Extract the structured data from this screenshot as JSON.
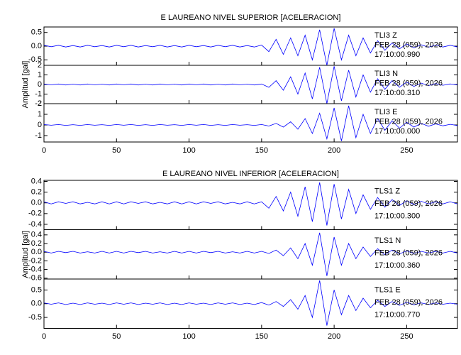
{
  "chart_data": [
    {
      "type": "line",
      "title": "E LAUREANO NIVEL SUPERIOR [ACELERACION]",
      "y_label": "Amplitud [gal]",
      "xlim": [
        0,
        285
      ],
      "xticks": [
        0,
        50,
        100,
        150,
        200,
        250
      ],
      "x": [
        0,
        5,
        10,
        15,
        20,
        25,
        30,
        35,
        40,
        45,
        50,
        55,
        60,
        65,
        70,
        75,
        80,
        85,
        90,
        95,
        100,
        105,
        110,
        115,
        120,
        125,
        130,
        135,
        140,
        145,
        150,
        155,
        160,
        165,
        170,
        175,
        180,
        185,
        190,
        195,
        200,
        205,
        210,
        215,
        220,
        225,
        230,
        235,
        240,
        245,
        250,
        255,
        260,
        265,
        270,
        275,
        280,
        285
      ],
      "panels": [
        {
          "station": "TLI3   Z",
          "date": "FEB 28 (059), 2026",
          "time": "17:10:00.990",
          "color": "#0000ff",
          "ylim": [
            -0.7,
            0.7
          ],
          "yticks": [
            -0.5,
            {
              "value": 0,
              "label": "0.0"
            },
            0.5
          ],
          "values": [
            0.03,
            -0.02,
            0.03,
            -0.03,
            0.02,
            -0.03,
            0.03,
            -0.02,
            0.02,
            -0.03,
            0.03,
            -0.02,
            0.03,
            -0.03,
            0.02,
            -0.02,
            0.03,
            -0.03,
            0.02,
            -0.03,
            0.03,
            -0.02,
            0.02,
            -0.03,
            0.03,
            -0.02,
            0.03,
            -0.03,
            0.02,
            -0.03,
            0.04,
            -0.2,
            0.25,
            -0.3,
            0.3,
            -0.35,
            0.4,
            -0.5,
            0.6,
            -0.7,
            0.65,
            -0.5,
            0.4,
            -0.35,
            0.3,
            -0.25,
            0.2,
            -0.15,
            0.12,
            -0.1,
            0.08,
            -0.06,
            0.05,
            -0.04,
            0.04,
            -0.03,
            0.03,
            -0.03
          ]
        },
        {
          "station": "TLI3   N",
          "date": "FEB 28 (059), 2026",
          "time": "17:10:00.310",
          "color": "#0000ff",
          "ylim": [
            -2,
            2
          ],
          "yticks": [
            -2,
            -1,
            0,
            1,
            2
          ],
          "values": [
            0.05,
            -0.04,
            0.05,
            -0.05,
            0.04,
            -0.05,
            0.05,
            -0.04,
            0.04,
            -0.05,
            0.05,
            -0.04,
            0.05,
            -0.05,
            0.04,
            -0.05,
            0.05,
            -0.04,
            0.04,
            -0.05,
            0.05,
            -0.04,
            0.05,
            -0.05,
            0.04,
            -0.05,
            0.05,
            -0.04,
            0.04,
            -0.05,
            0.05,
            -0.3,
            0.4,
            -0.6,
            0.8,
            -1.0,
            1.2,
            -1.5,
            1.8,
            -2.0,
            1.9,
            -1.7,
            1.5,
            -1.3,
            1.0,
            -0.8,
            0.6,
            -0.5,
            0.4,
            -0.3,
            0.25,
            -0.2,
            0.15,
            -0.12,
            0.1,
            -0.08,
            0.06,
            -0.05
          ]
        },
        {
          "station": "TLI3   E",
          "date": "FEB 28 (059), 2026",
          "time": "17:10:00.000",
          "color": "#0000ff",
          "ylim": [
            -1.6,
            2
          ],
          "yticks": [
            -1,
            0,
            1,
            2
          ],
          "values": [
            0.04,
            -0.03,
            0.04,
            -0.04,
            0.03,
            -0.04,
            0.04,
            -0.03,
            0.03,
            -0.04,
            0.04,
            -0.03,
            0.04,
            -0.04,
            0.03,
            -0.04,
            0.04,
            -0.03,
            0.03,
            -0.04,
            0.04,
            -0.03,
            0.04,
            -0.04,
            0.03,
            -0.04,
            0.04,
            -0.03,
            0.03,
            -0.04,
            0.04,
            -0.1,
            0.15,
            -0.2,
            0.3,
            -0.4,
            0.6,
            -0.8,
            1.1,
            -1.3,
            1.6,
            -1.5,
            1.8,
            -1.2,
            1.0,
            -0.8,
            0.6,
            -0.5,
            0.4,
            -0.3,
            0.25,
            -0.2,
            0.15,
            -0.12,
            0.1,
            -0.08,
            0.06,
            -0.05
          ]
        }
      ]
    },
    {
      "type": "line",
      "title": "E LAUREANO NIVEL INFERIOR [ACELERACION]",
      "y_label": "Amplitud [gal]",
      "xlim": [
        0,
        285
      ],
      "xticks": [
        0,
        50,
        100,
        150,
        200,
        250
      ],
      "x": [
        0,
        5,
        10,
        15,
        20,
        25,
        30,
        35,
        40,
        45,
        50,
        55,
        60,
        65,
        70,
        75,
        80,
        85,
        90,
        95,
        100,
        105,
        110,
        115,
        120,
        125,
        130,
        135,
        140,
        145,
        150,
        155,
        160,
        165,
        170,
        175,
        180,
        185,
        190,
        195,
        200,
        205,
        210,
        215,
        220,
        225,
        230,
        235,
        240,
        245,
        250,
        255,
        260,
        265,
        270,
        275,
        280,
        285
      ],
      "panels": [
        {
          "station": "TLS1   Z",
          "date": "FEB 28 (059), 2026",
          "time": "17:10:00.300",
          "color": "#0000ff",
          "ylim": [
            -0.5,
            0.42
          ],
          "yticks": [
            -0.4,
            -0.2,
            {
              "value": 0,
              "label": "0.0"
            },
            0.2,
            0.4
          ],
          "values": [
            0.02,
            -0.02,
            0.02,
            -0.01,
            0.02,
            -0.02,
            0.01,
            -0.02,
            0.02,
            -0.02,
            0.02,
            -0.02,
            0.02,
            -0.01,
            0.02,
            -0.02,
            0.01,
            -0.02,
            0.02,
            -0.02,
            0.02,
            -0.02,
            0.02,
            -0.01,
            0.02,
            -0.02,
            0.01,
            -0.02,
            0.02,
            -0.02,
            0.02,
            -0.1,
            0.12,
            -0.15,
            0.2,
            -0.25,
            0.3,
            -0.35,
            0.38,
            -0.42,
            0.35,
            -0.3,
            0.25,
            -0.2,
            0.15,
            -0.12,
            0.1,
            -0.08,
            0.06,
            -0.05,
            0.04,
            -0.03,
            0.03,
            -0.02,
            0.02,
            -0.02,
            0.02,
            -0.02
          ]
        },
        {
          "station": "TLS1   N",
          "date": "FEB 28 (059), 2026",
          "time": "17:10:00.360",
          "color": "#0000ff",
          "ylim": [
            -0.62,
            0.52
          ],
          "yticks": [
            -0.6,
            -0.4,
            -0.2,
            {
              "value": 0,
              "label": "0.0"
            },
            0.2,
            0.4
          ],
          "values": [
            0.02,
            -0.02,
            0.02,
            -0.01,
            0.02,
            -0.02,
            0.01,
            -0.02,
            0.02,
            -0.02,
            0.02,
            -0.02,
            0.02,
            -0.01,
            0.02,
            -0.02,
            0.01,
            -0.02,
            0.02,
            -0.02,
            0.02,
            -0.02,
            0.02,
            -0.01,
            0.02,
            -0.02,
            0.01,
            -0.02,
            0.02,
            -0.02,
            0.02,
            -0.03,
            0.05,
            -0.08,
            0.1,
            -0.15,
            0.2,
            -0.3,
            0.45,
            -0.55,
            0.35,
            -0.3,
            0.2,
            -0.15,
            0.12,
            -0.1,
            0.08,
            -0.06,
            0.05,
            -0.04,
            0.03,
            -0.03,
            0.02,
            -0.02,
            0.02,
            -0.02,
            0.02,
            -0.02
          ]
        },
        {
          "station": "TLS1   E",
          "date": "FEB 28 (059), 2026",
          "time": "17:10:00.770",
          "color": "#0000ff",
          "ylim": [
            -0.9,
            0.9
          ],
          "yticks": [
            -0.5,
            {
              "value": 0,
              "label": "0.0"
            },
            0.5
          ],
          "values": [
            0.03,
            -0.02,
            0.03,
            -0.03,
            0.02,
            -0.03,
            0.03,
            -0.02,
            0.02,
            -0.03,
            0.03,
            -0.02,
            0.03,
            -0.03,
            0.02,
            -0.02,
            0.03,
            -0.03,
            0.02,
            -0.03,
            0.03,
            -0.02,
            0.02,
            -0.03,
            0.03,
            -0.02,
            0.03,
            -0.03,
            0.02,
            -0.03,
            0.04,
            -0.05,
            0.08,
            -0.1,
            0.15,
            -0.2,
            0.3,
            -0.5,
            0.85,
            -0.8,
            0.5,
            -0.4,
            0.3,
            -0.25,
            0.2,
            -0.15,
            0.12,
            -0.1,
            0.08,
            -0.06,
            0.05,
            -0.04,
            0.03,
            -0.03,
            0.03,
            -0.02,
            0.02,
            -0.02
          ]
        }
      ]
    }
  ]
}
